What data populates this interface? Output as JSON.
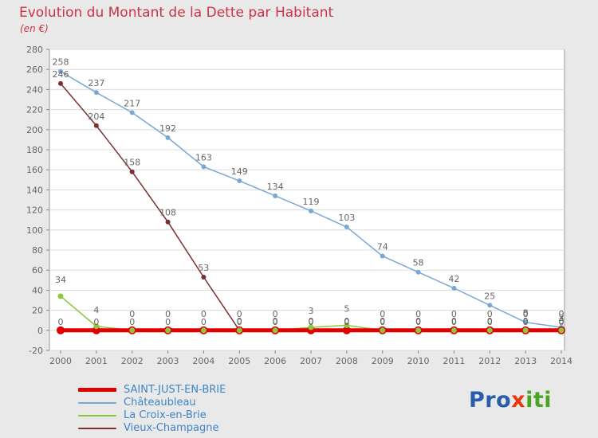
{
  "header": {
    "title": "Evolution du Montant de la Dette par Habitant",
    "subtitle": "(en €)"
  },
  "chart_data": {
    "type": "line",
    "title": "Evolution du Montant de la Dette par Habitant",
    "subtitle": "(en €)",
    "xlabel": "",
    "ylabel": "",
    "categories": [
      2000,
      2001,
      2002,
      2003,
      2004,
      2005,
      2006,
      2007,
      2008,
      2009,
      2010,
      2011,
      2012,
      2013,
      2014
    ],
    "series": [
      {
        "name": "SAINT-JUST-EN-BRIE",
        "color": "#e00000",
        "line_width": 5,
        "marker_r": 5,
        "values": [
          0,
          0,
          0,
          0,
          0,
          0,
          0,
          0,
          0,
          0,
          0,
          0,
          0,
          0,
          0
        ]
      },
      {
        "name": "Châteaubleau",
        "color": "#7aa7d4",
        "line_width": 1.5,
        "marker_r": 3,
        "values": [
          258,
          237,
          217,
          192,
          163,
          149,
          134,
          119,
          103,
          74,
          58,
          42,
          25,
          8,
          3
        ]
      },
      {
        "name": "La Croix-en-Brie",
        "color": "#8cc63f",
        "line_width": 1.5,
        "marker_r": 3.5,
        "values": [
          34,
          4,
          0,
          0,
          0,
          0,
          0,
          3,
          5,
          0,
          0,
          0,
          0,
          0,
          0
        ]
      },
      {
        "name": "Vieux-Champagne",
        "color": "#7a3030",
        "line_width": 1.5,
        "marker_r": 3,
        "values": [
          246,
          204,
          158,
          108,
          53,
          0,
          0,
          0,
          0,
          0,
          0,
          0,
          0,
          0,
          0
        ]
      }
    ],
    "ylim": [
      -20,
      280
    ],
    "ytick_step": 20,
    "grid": true,
    "legend_position": "bottom-left",
    "label_color": "#666666",
    "grid_color": "#dcdcdc"
  },
  "logo": {
    "part1": "Pro",
    "part2": "x",
    "part3": "iti"
  }
}
